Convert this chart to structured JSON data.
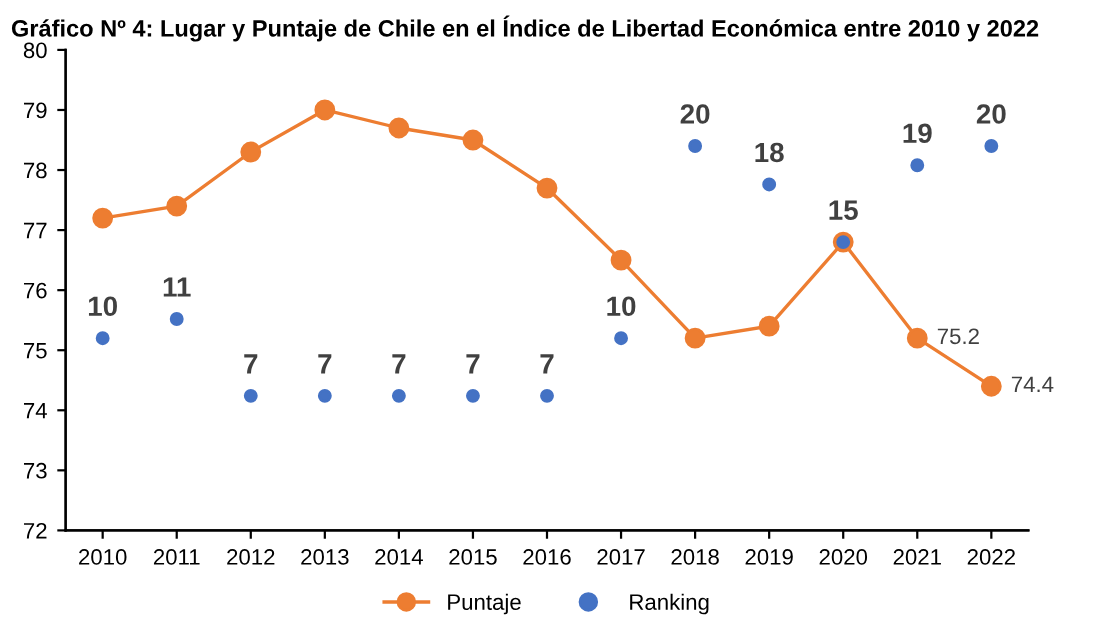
{
  "chart_data": {
    "type": "line",
    "title": "Gráfico Nº 4: Lugar y Puntaje de Chile en el Índice de Libertad Económica entre 2010 y 2022",
    "categories": [
      "2010",
      "2011",
      "2012",
      "2013",
      "2014",
      "2015",
      "2016",
      "2017",
      "2018",
      "2019",
      "2020",
      "2021",
      "2022"
    ],
    "series": [
      {
        "name": "Puntaje",
        "color": "#ed7d31",
        "marker": "circle",
        "values": [
          77.2,
          77.4,
          78.3,
          79.0,
          78.7,
          78.5,
          77.7,
          76.5,
          75.2,
          75.4,
          76.8,
          75.2,
          74.4
        ],
        "value_labels": [
          null,
          null,
          null,
          null,
          null,
          null,
          null,
          null,
          null,
          null,
          null,
          "75.2",
          "74.4"
        ]
      },
      {
        "name": "Ranking",
        "type": "scatter",
        "axis": "y2",
        "color": "#4472c4",
        "marker": "circle",
        "values": [
          10,
          11,
          7,
          7,
          7,
          7,
          7,
          10,
          20,
          18,
          15,
          19,
          20
        ],
        "data_labels": true
      }
    ],
    "ylim": [
      72,
      80
    ],
    "yticks": [
      72,
      73,
      74,
      75,
      76,
      77,
      78,
      79,
      80
    ],
    "y2lim": [
      0,
      25
    ],
    "grid": false,
    "legend": "bottom"
  }
}
